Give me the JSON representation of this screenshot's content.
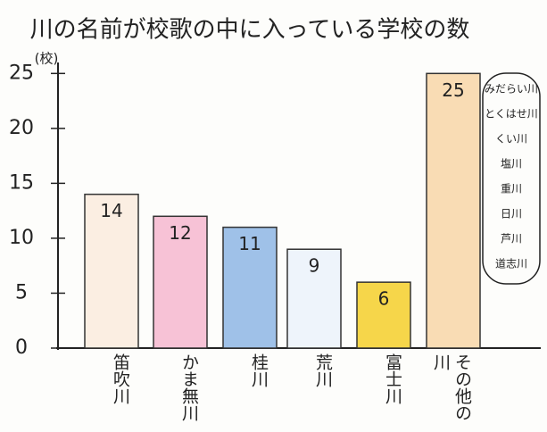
{
  "chart_data": {
    "type": "bar",
    "title": "川の名前が校歌の中に入っている学校の数",
    "y_label": "(校)",
    "categories": [
      "笛吹川",
      "かま無川",
      "桂川",
      "荒川",
      "富士川",
      "その他の川"
    ],
    "values": [
      14,
      12,
      11,
      9,
      6,
      25
    ],
    "colors": [
      "#fbeee2",
      "#f7c2d6",
      "#9fc1e8",
      "#eef4fb",
      "#f6d64a",
      "#f9dcb4"
    ],
    "ylim": [
      0,
      26
    ],
    "yticks": [
      0,
      5,
      10,
      15,
      20,
      25
    ],
    "annotations": [
      "みだらい川",
      "とくはせ川",
      "くい川",
      "塩川",
      "重川",
      "日川",
      "芦川",
      "道志川"
    ]
  }
}
